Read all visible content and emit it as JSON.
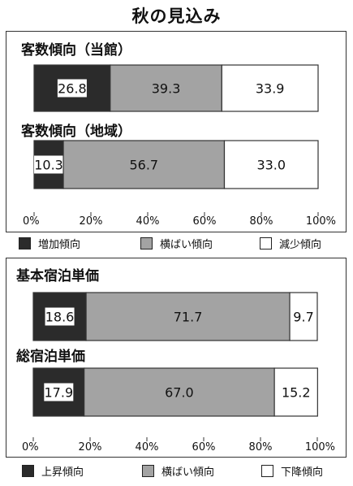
{
  "page": {
    "title": "秋の見込み"
  },
  "colors": {
    "dark": "#2b2b2b",
    "gray": "#a3a3a3",
    "white": "#ffffff",
    "outline": "#333333"
  },
  "chart_data": [
    {
      "type": "bar",
      "orientation": "horizontal",
      "stacked": true,
      "categories": [
        "客数傾向（当館）",
        "客数傾向（地域）"
      ],
      "series": [
        {
          "name": "増加傾向",
          "values": [
            26.8,
            10.3
          ],
          "color": "#2b2b2b"
        },
        {
          "name": "横ばい傾向",
          "values": [
            39.3,
            56.7
          ],
          "color": "#a3a3a3"
        },
        {
          "name": "減少傾向",
          "values": [
            33.9,
            33.0
          ],
          "color": "#ffffff"
        }
      ],
      "xlim": [
        0,
        100
      ],
      "ticks": [
        "0%",
        "20%",
        "40%",
        "60%",
        "80%",
        "100%"
      ],
      "legend_position": "bottom"
    },
    {
      "type": "bar",
      "orientation": "horizontal",
      "stacked": true,
      "categories": [
        "基本宿泊単価",
        "総宿泊単価"
      ],
      "series": [
        {
          "name": "上昇傾向",
          "values": [
            18.6,
            17.9
          ],
          "color": "#2b2b2b"
        },
        {
          "name": "横ばい傾向",
          "values": [
            71.7,
            67.0
          ],
          "color": "#a3a3a3"
        },
        {
          "name": "下降傾向",
          "values": [
            9.7,
            15.2
          ],
          "color": "#ffffff"
        }
      ],
      "xlim": [
        0,
        100
      ],
      "ticks": [
        "0%",
        "20%",
        "40%",
        "60%",
        "80%",
        "100%"
      ],
      "legend_position": "bottom"
    }
  ]
}
